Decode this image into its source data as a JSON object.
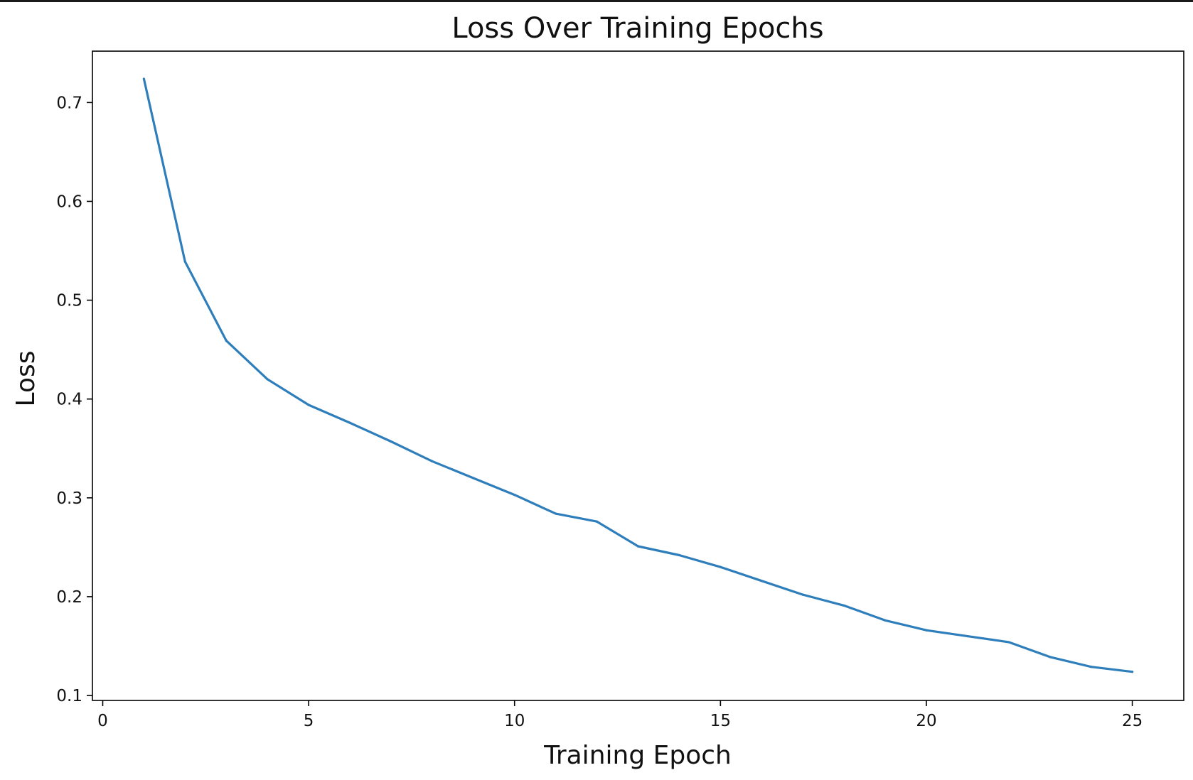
{
  "chart_data": {
    "type": "line",
    "title": "Loss Over Training Epochs",
    "xlabel": "Training Epoch",
    "ylabel": "Loss",
    "xlim": [
      -0.25,
      26.25
    ],
    "ylim": [
      0.095,
      0.752
    ],
    "xticks": [
      0,
      5,
      10,
      15,
      20,
      25
    ],
    "xtick_labels": [
      "0",
      "5",
      "10",
      "15",
      "20",
      "25"
    ],
    "yticks": [
      0.1,
      0.2,
      0.3,
      0.4,
      0.5,
      0.6,
      0.7
    ],
    "ytick_labels": [
      "0.1",
      "0.2",
      "0.3",
      "0.4",
      "0.5",
      "0.6",
      "0.7"
    ],
    "grid": false,
    "legend": false,
    "series": [
      {
        "color": "#2e7ebc",
        "x": [
          1,
          2,
          3,
          4,
          5,
          6,
          7,
          8,
          9,
          10,
          11,
          12,
          13,
          14,
          15,
          16,
          17,
          18,
          19,
          20,
          21,
          22,
          23,
          24,
          25
        ],
        "y": [
          0.724,
          0.539,
          0.459,
          0.42,
          0.394,
          0.376,
          0.357,
          0.337,
          0.32,
          0.303,
          0.284,
          0.276,
          0.251,
          0.242,
          0.23,
          0.216,
          0.202,
          0.191,
          0.176,
          0.166,
          0.16,
          0.154,
          0.139,
          0.129,
          0.124
        ]
      }
    ]
  }
}
